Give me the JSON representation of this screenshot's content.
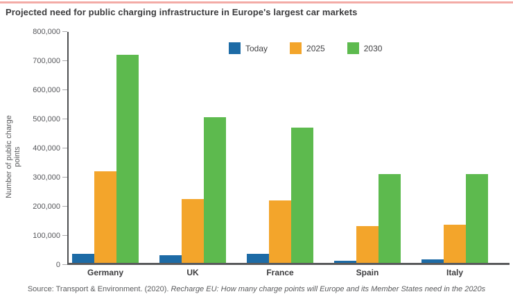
{
  "page_title": "Projected need for public charging infrastructure in Europe's largest car markets",
  "colors": {
    "accent_top_rule": "#f3aba6",
    "today_blue": "#1d6ba6",
    "y2025_orange": "#f3a52b",
    "y2030_green": "#5dba4e",
    "axis_dark": "#4e4f51",
    "text_gray": "#58595b"
  },
  "source": {
    "prefix": "Source: Transport & Environment. (2020). ",
    "italic": "Recharge EU: How many charge points will Europe and its Member States need in the 2020s"
  },
  "chart_data": {
    "type": "bar",
    "title": "Projected need for public charging infrastructure in Europe's largest car markets",
    "xlabel": "",
    "ylabel": "Number of public charge points",
    "ylim": [
      0,
      800000
    ],
    "ytick_step": 100000,
    "ytick_labels": [
      "0",
      "100,000",
      "200,000",
      "300,000",
      "400,000",
      "500,000",
      "600,000",
      "700,000",
      "800,000"
    ],
    "grid": false,
    "legend_position": "top-center-inside",
    "categories": [
      "Germany",
      "UK",
      "France",
      "Spain",
      "Italy"
    ],
    "series": [
      {
        "name": "Today",
        "color": "#1d6ba6",
        "values": [
          30000,
          25000,
          30000,
          7000,
          13000
        ]
      },
      {
        "name": "2025",
        "color": "#f3a52b",
        "values": [
          315000,
          220000,
          215000,
          125000,
          130000
        ]
      },
      {
        "name": "2030",
        "color": "#5dba4e",
        "values": [
          715000,
          500000,
          465000,
          305000,
          305000
        ]
      }
    ]
  }
}
